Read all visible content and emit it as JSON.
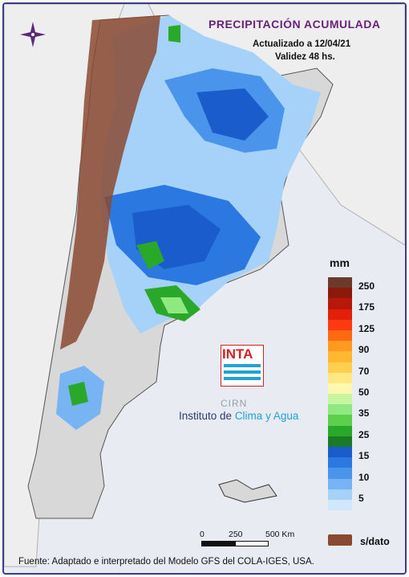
{
  "title": "PRECIPITACIÓN ACUMULADA",
  "updated": "Actualizado a 12/04/21",
  "validity": "Validez 48 hs.",
  "legend": {
    "unit": "mm",
    "classes": [
      {
        "label": "250",
        "color": "#6b3a2a"
      },
      {
        "label": "",
        "color": "#8b1a0a"
      },
      {
        "label": "175",
        "color": "#b8180a"
      },
      {
        "label": "",
        "color": "#e0200a"
      },
      {
        "label": "125",
        "color": "#ff3a10"
      },
      {
        "label": "",
        "color": "#ff6a10"
      },
      {
        "label": "90",
        "color": "#ff9a20"
      },
      {
        "label": "",
        "color": "#ffb830"
      },
      {
        "label": "70",
        "color": "#ffd050"
      },
      {
        "label": "",
        "color": "#ffe880"
      },
      {
        "label": "50",
        "color": "#fff8b0"
      },
      {
        "label": "",
        "color": "#c8f5a0"
      },
      {
        "label": "35",
        "color": "#90e880"
      },
      {
        "label": "",
        "color": "#5cd04c"
      },
      {
        "label": "25",
        "color": "#2aa82a"
      },
      {
        "label": "",
        "color": "#1a7a28"
      },
      {
        "label": "15",
        "color": "#1a5ccc"
      },
      {
        "label": "",
        "color": "#2a78e0"
      },
      {
        "label": "10",
        "color": "#4a94ec"
      },
      {
        "label": "",
        "color": "#78b4f4"
      },
      {
        "label": "5",
        "color": "#a6d2fa"
      },
      {
        "label": "",
        "color": "#cfe8fc"
      }
    ],
    "nodata_label": "s/dato"
  },
  "scale": {
    "labels": [
      "0",
      "250",
      "500 Km"
    ]
  },
  "logo": {
    "brand": "INTA",
    "sub": "CIRN",
    "institute_prefix": "Instituto de",
    "institute_accent": "Clima y Agua"
  },
  "source": "Fuente: Adaptado e interpretado del Modelo GFS del COLA-IGES, USA.",
  "colors": {
    "title": "#6a1f7a",
    "frame": "#3c3c8c",
    "land": "#d8d8d8",
    "neighbors": "#eeeeee",
    "sea": "#e9ebf3"
  }
}
